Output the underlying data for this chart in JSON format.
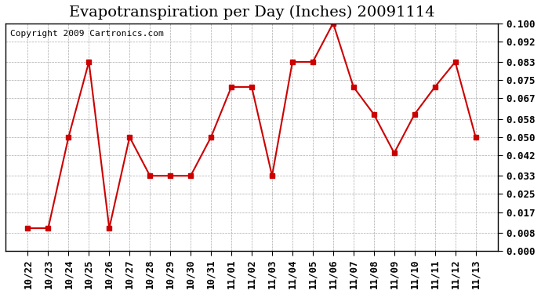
{
  "title": "Evapotranspiration per Day (Inches) 20091114",
  "copyright": "Copyright 2009 Cartronics.com",
  "x_labels": [
    "10/22",
    "10/23",
    "10/24",
    "10/25",
    "10/26",
    "10/27",
    "10/28",
    "10/29",
    "10/30",
    "10/31",
    "11/01",
    "11/02",
    "11/03",
    "11/04",
    "11/05",
    "11/06",
    "11/07",
    "11/08",
    "11/09",
    "11/10",
    "11/11",
    "11/12",
    "11/13"
  ],
  "y_values": [
    0.01,
    0.01,
    0.05,
    0.083,
    0.01,
    0.05,
    0.033,
    0.033,
    0.033,
    0.05,
    0.072,
    0.072,
    0.033,
    0.083,
    0.083,
    0.1,
    0.072,
    0.06,
    0.043,
    0.06,
    0.072,
    0.083,
    0.05
  ],
  "y_ticks": [
    0.0,
    0.008,
    0.017,
    0.025,
    0.033,
    0.042,
    0.05,
    0.058,
    0.067,
    0.075,
    0.083,
    0.092,
    0.1
  ],
  "line_color": "#cc0000",
  "marker_color": "#cc0000",
  "bg_color": "#ffffff",
  "grid_color": "#aaaaaa",
  "ylim": [
    0.0,
    0.1
  ],
  "title_fontsize": 14,
  "copyright_fontsize": 8,
  "tick_fontsize": 9,
  "marker_size": 4
}
